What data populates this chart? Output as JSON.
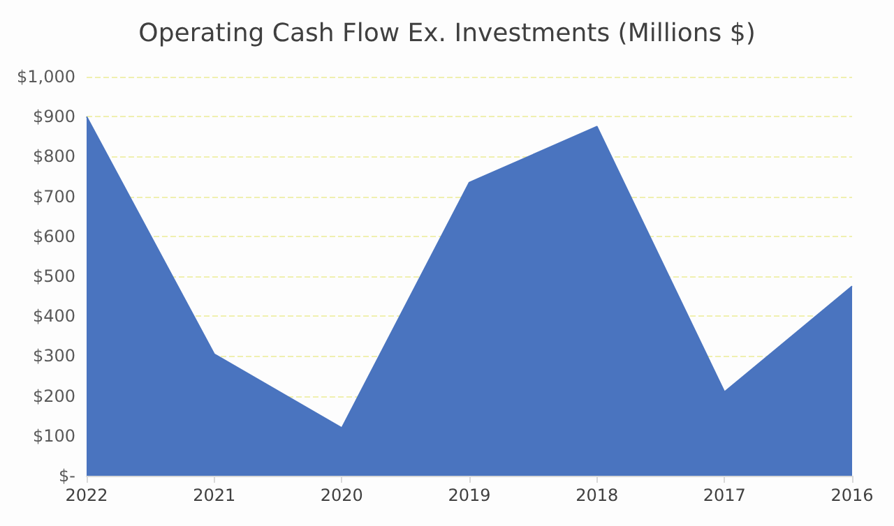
{
  "chart_data": {
    "type": "area",
    "title": "Operating Cash Flow Ex. Investments (Millions $)",
    "categories": [
      "2022",
      "2021",
      "2020",
      "2019",
      "2018",
      "2017",
      "2016"
    ],
    "series": [
      {
        "color": "#4a74bf",
        "values": [
          900,
          305,
          120,
          735,
          875,
          210,
          475
        ]
      }
    ],
    "ylim": [
      0,
      1000
    ],
    "yticks": [
      {
        "value": 0,
        "label": "$-"
      },
      {
        "value": 100,
        "label": "$100"
      },
      {
        "value": 200,
        "label": "$200"
      },
      {
        "value": 300,
        "label": "$300"
      },
      {
        "value": 400,
        "label": "$400"
      },
      {
        "value": 500,
        "label": "$500"
      },
      {
        "value": 600,
        "label": "$600"
      },
      {
        "value": 700,
        "label": "$700"
      },
      {
        "value": 800,
        "label": "$800"
      },
      {
        "value": 900,
        "label": "$900"
      },
      {
        "value": 1000,
        "label": "$1,000"
      }
    ],
    "grid": "y"
  }
}
